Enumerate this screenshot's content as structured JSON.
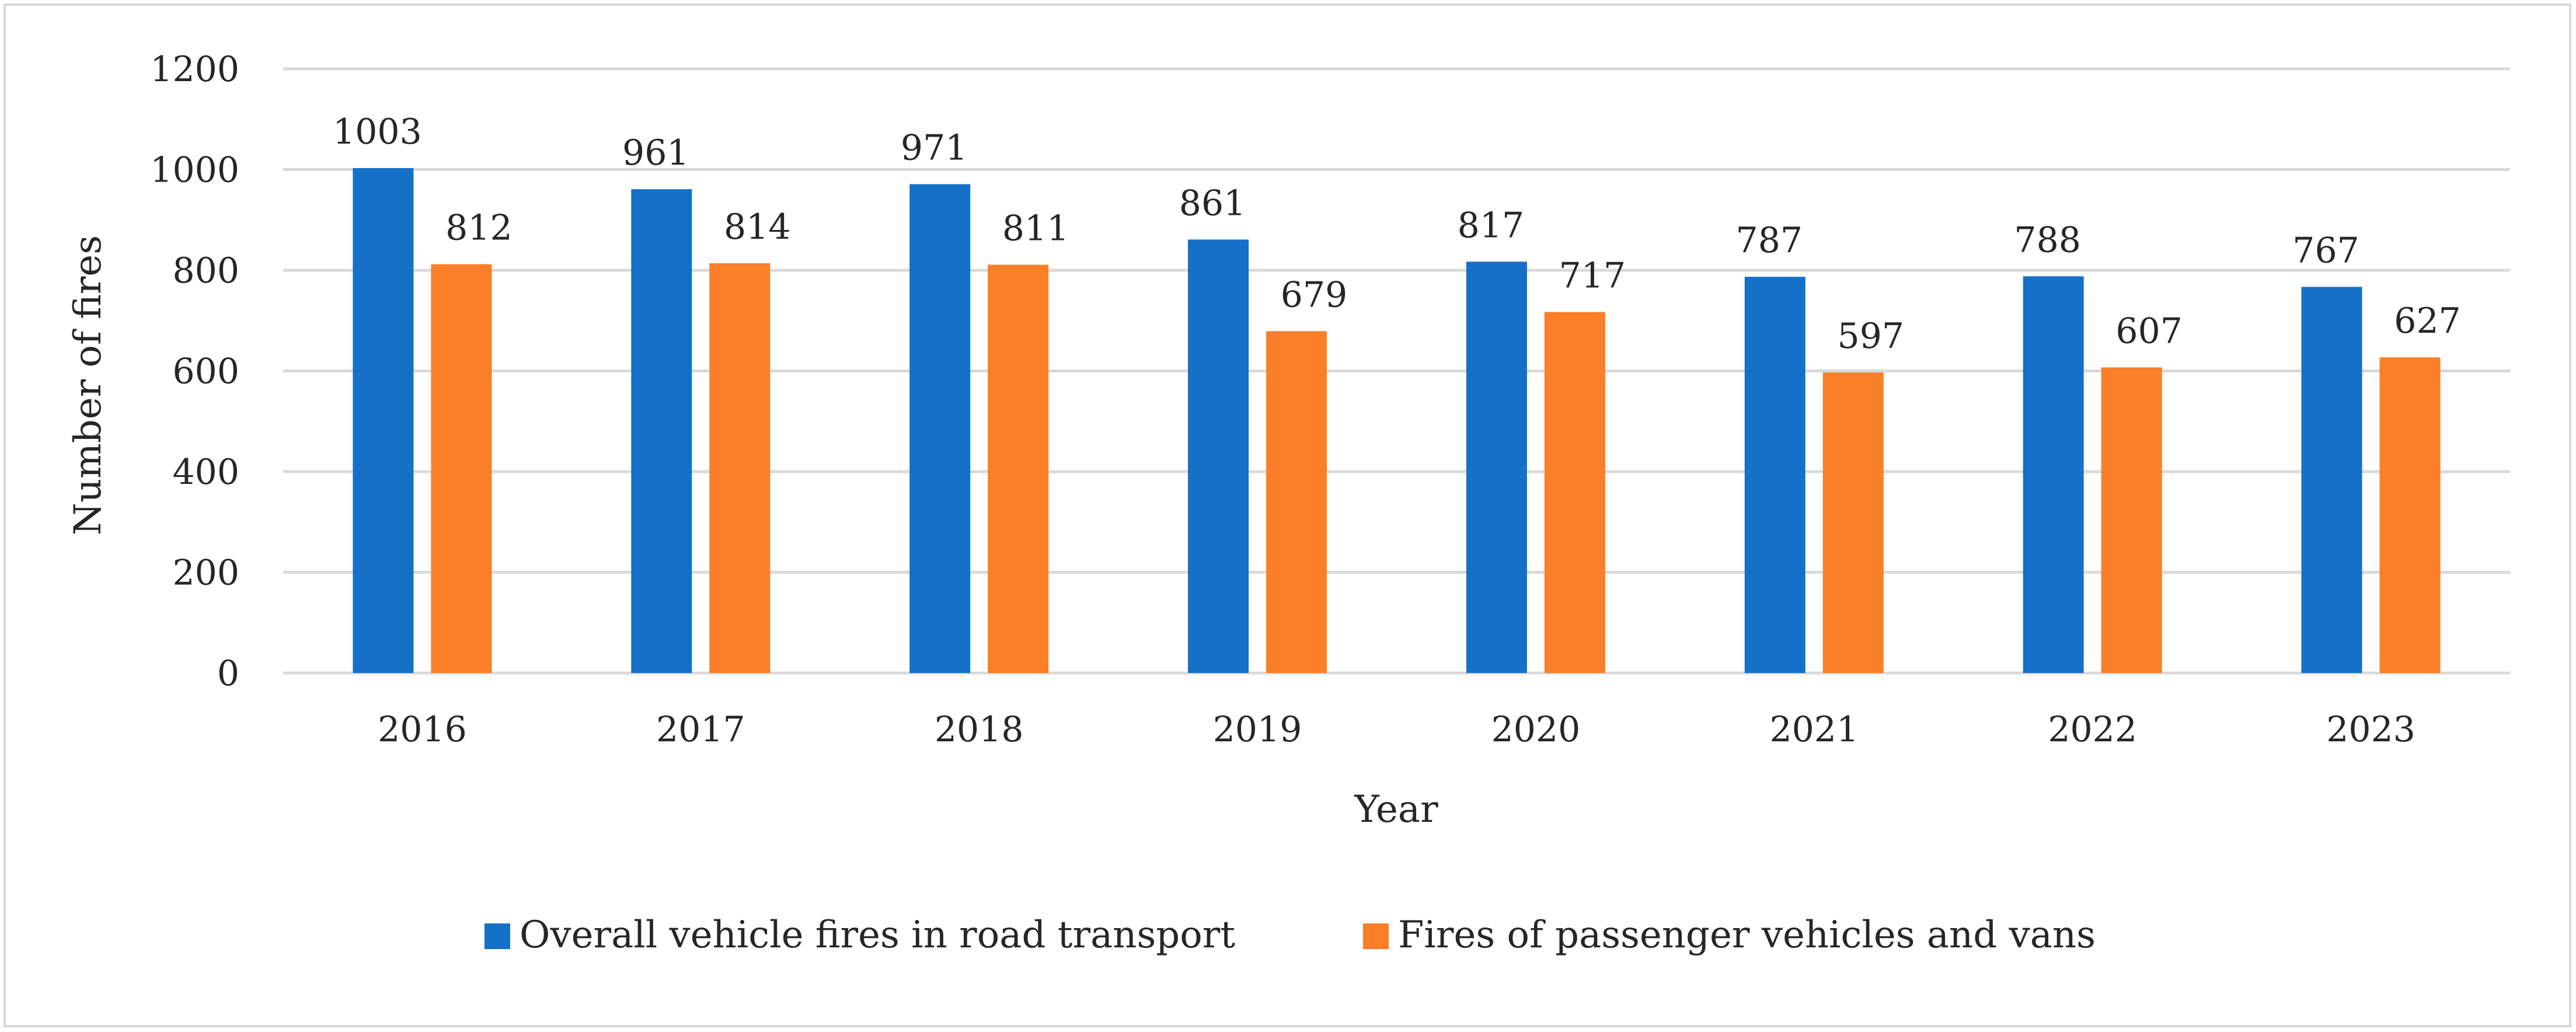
{
  "chart_data": {
    "type": "bar",
    "title": "",
    "xlabel": "Year",
    "ylabel": "Number of fires",
    "categories": [
      "2016",
      "2017",
      "2018",
      "2019",
      "2020",
      "2021",
      "2022",
      "2023"
    ],
    "ylim": [
      0,
      1200
    ],
    "yticks": [
      "0",
      "200",
      "400",
      "600",
      "800",
      "1000",
      "1200"
    ],
    "grid": true,
    "legend_position": "bottom",
    "series": [
      {
        "name": "Overall vehicle fires in road transport",
        "color": "#1570C8",
        "values": [
          1003,
          961,
          971,
          861,
          817,
          787,
          788,
          767
        ],
        "labels": [
          "1003",
          "961",
          "971",
          "861",
          "817",
          "787",
          "788",
          "767"
        ]
      },
      {
        "name": "Fires of passenger vehicles and vans",
        "color": "#FB7E28",
        "values": [
          812,
          814,
          811,
          679,
          717,
          597,
          607,
          627
        ],
        "labels": [
          "812",
          "814",
          "811",
          "679",
          "717",
          "597",
          "607",
          "627"
        ]
      }
    ]
  }
}
